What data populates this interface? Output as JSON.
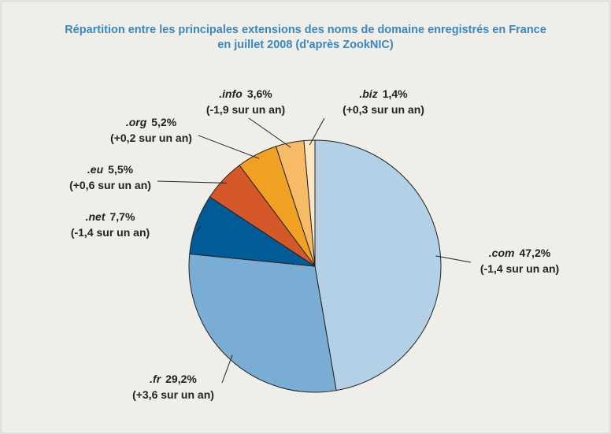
{
  "chart_data": {
    "type": "pie",
    "title": [
      "Répartition entre les principales extensions des noms de domaine enregistrés en France",
      "en juillet 2008 (d'après ZookNIC)"
    ],
    "categories": [
      ".com",
      ".fr",
      ".net",
      ".eu",
      ".org",
      ".info",
      ".biz"
    ],
    "values": [
      47.2,
      29.2,
      7.7,
      5.5,
      5.2,
      3.6,
      1.4
    ],
    "value_labels": [
      "47,2%",
      "29,2%",
      "7,7%",
      "5,5%",
      "5,2%",
      "3,6%",
      "1,4%"
    ],
    "annotations": [
      "(-1,4 sur un an)",
      "(+3,6 sur un an)",
      "(-1,4 sur un an)",
      "(+0,6 sur un an)",
      "(+0,2 sur un an)",
      "(-1,9 sur un an)",
      "(+0,3 sur un an)"
    ],
    "colors": [
      "#b3d0e6",
      "#7aadd3",
      "#005b96",
      "#d4582a",
      "#f0a122",
      "#f7bb66",
      "#fde6c4"
    ]
  }
}
